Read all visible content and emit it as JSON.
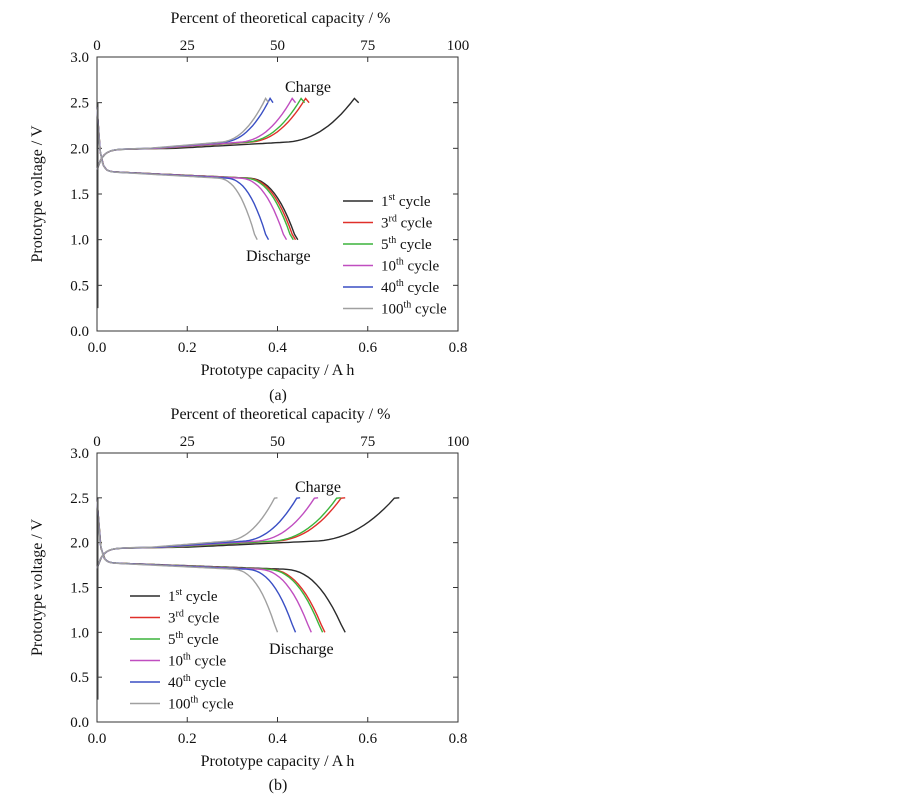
{
  "figure": {
    "colors": {
      "1st": "#2b2b2b",
      "3rd": "#e0302a",
      "5th": "#3cb43c",
      "10th": "#c04ec0",
      "40th": "#3a4fc4",
      "100th": "#a0a0a0"
    },
    "legend_entries": [
      {
        "key": "1st",
        "num": "1",
        "sup": "st",
        "suffix": " cycle"
      },
      {
        "key": "3rd",
        "num": "3",
        "sup": "rd",
        "suffix": " cycle"
      },
      {
        "key": "5th",
        "num": "5",
        "sup": "th",
        "suffix": " cycle"
      },
      {
        "key": "10th",
        "num": "10",
        "sup": "th",
        "suffix": " cycle"
      },
      {
        "key": "40th",
        "num": "40",
        "sup": "th",
        "suffix": " cycle"
      },
      {
        "key": "100th",
        "num": "100",
        "sup": "th",
        "suffix": " cycle"
      }
    ]
  },
  "chart_data": [
    {
      "type": "line",
      "panel": "(a)",
      "xlabel": "Prototype capacity / A h",
      "ylabel": "Prototype voltage / V",
      "x2label": "Percent of theoretical capacity / %",
      "xlim": [
        0,
        0.8
      ],
      "ylim": [
        0,
        3.0
      ],
      "x2lim": [
        0,
        100
      ],
      "xticks": [
        "0.0",
        "0.2",
        "0.4",
        "0.6",
        "0.8"
      ],
      "yticks": [
        "0.0",
        "0.5",
        "1.0",
        "1.5",
        "2.0",
        "2.5",
        "3.0"
      ],
      "x2ticks": [
        "0",
        "25",
        "50",
        "75",
        "100"
      ],
      "annotations": {
        "charge": "Charge",
        "discharge": "Discharge"
      },
      "legend_position": "center-right",
      "charge_plateau": 2.0,
      "discharge_plateau": 1.75,
      "series": [
        {
          "key": "1st",
          "name": "1st cycle",
          "charge_end": 0.58,
          "discharge_end": 0.445
        },
        {
          "key": "3rd",
          "name": "3rd cycle",
          "charge_end": 0.47,
          "discharge_end": 0.44
        },
        {
          "key": "5th",
          "name": "5th cycle",
          "charge_end": 0.46,
          "discharge_end": 0.435
        },
        {
          "key": "10th",
          "name": "10th cycle",
          "charge_end": 0.44,
          "discharge_end": 0.42
        },
        {
          "key": "40th",
          "name": "40th cycle",
          "charge_end": 0.39,
          "discharge_end": 0.38
        },
        {
          "key": "100th",
          "name": "100th cycle",
          "charge_end": 0.38,
          "discharge_end": 0.355
        }
      ]
    },
    {
      "type": "line",
      "panel": "(b)",
      "xlabel": "Prototype capacity / A h",
      "ylabel": "Prototype voltage / V",
      "x2label": "Percent of theoretical capacity / %",
      "xlim": [
        0,
        0.8
      ],
      "ylim": [
        0,
        3.0
      ],
      "x2lim": [
        0,
        100
      ],
      "xticks": [
        "0.0",
        "0.2",
        "0.4",
        "0.6",
        "0.8"
      ],
      "yticks": [
        "0.0",
        "0.5",
        "1.0",
        "1.5",
        "2.0",
        "2.5",
        "3.0"
      ],
      "x2ticks": [
        "0",
        "25",
        "50",
        "75",
        "100"
      ],
      "annotations": {
        "charge": "Charge",
        "discharge": "Discharge"
      },
      "legend_position": "center-left",
      "charge_plateau": 1.95,
      "discharge_plateau": 1.78,
      "series": [
        {
          "key": "1st",
          "name": "1st cycle",
          "charge_end": 0.67,
          "discharge_end": 0.55
        },
        {
          "key": "3rd",
          "name": "3rd cycle",
          "charge_end": 0.55,
          "discharge_end": 0.505
        },
        {
          "key": "5th",
          "name": "5th cycle",
          "charge_end": 0.54,
          "discharge_end": 0.5
        },
        {
          "key": "10th",
          "name": "10th cycle",
          "charge_end": 0.49,
          "discharge_end": 0.475
        },
        {
          "key": "40th",
          "name": "40th cycle",
          "charge_end": 0.45,
          "discharge_end": 0.44
        },
        {
          "key": "100th",
          "name": "100th cycle",
          "charge_end": 0.4,
          "discharge_end": 0.4
        }
      ]
    }
  ]
}
